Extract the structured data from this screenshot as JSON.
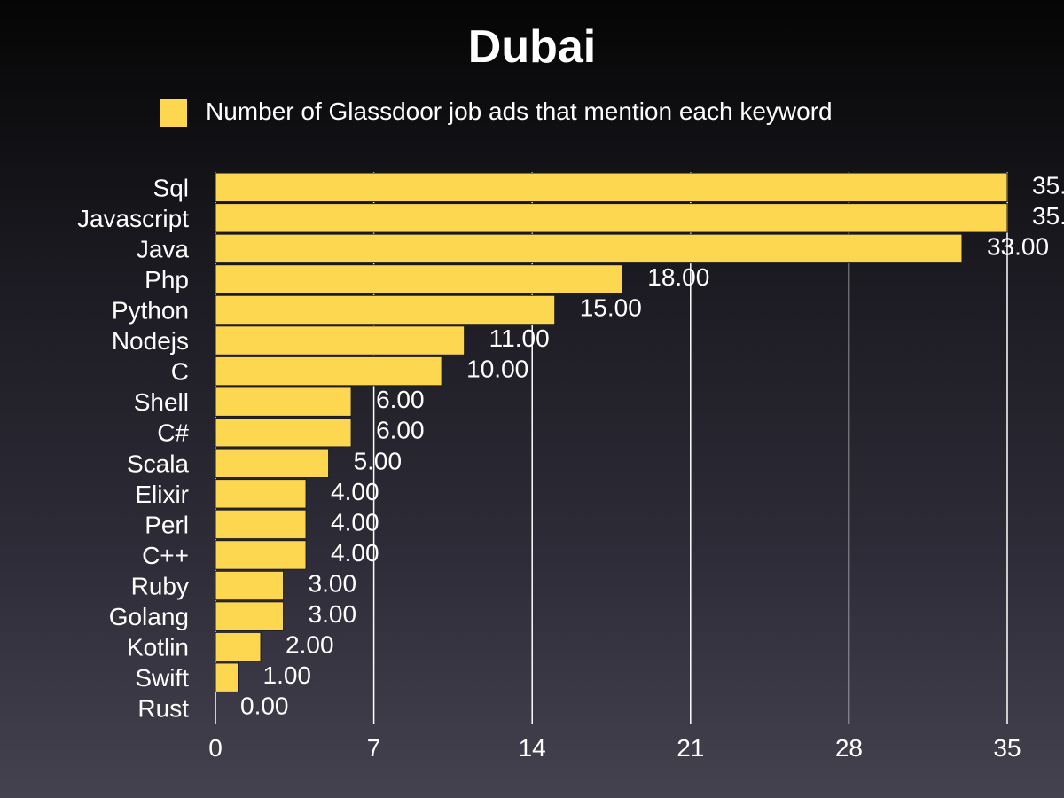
{
  "chart_data": {
    "type": "bar",
    "orientation": "horizontal",
    "title": "Dubai",
    "xlabel": "",
    "ylabel": "",
    "xlim": [
      0,
      35
    ],
    "xticks": [
      "0",
      "7",
      "14",
      "21",
      "28",
      "35"
    ],
    "grid": true,
    "legend_position": "top",
    "categories": [
      "Sql",
      "Javascript",
      "Java",
      "Php",
      "Python",
      "Nodejs",
      "C",
      "Shell",
      "C#",
      "Scala",
      "Elixir",
      "Perl",
      "C++",
      "Ruby",
      "Golang",
      "Kotlin",
      "Swift",
      "Rust"
    ],
    "series": [
      {
        "name": "Number of Glassdoor job ads that mention each keyword",
        "values": [
          35,
          35,
          33,
          18,
          15,
          11,
          10,
          6,
          6,
          5,
          4,
          4,
          4,
          3,
          3,
          2,
          1,
          0
        ],
        "value_labels": [
          "35.",
          "35.",
          "33.00",
          "18.00",
          "15.00",
          "11.00",
          "10.00",
          "6.00",
          "6.00",
          "5.00",
          "4.00",
          "4.00",
          "4.00",
          "3.00",
          "3.00",
          "2.00",
          "1.00",
          "0.00"
        ]
      }
    ],
    "colors": {
      "bar": "#fdd74f",
      "text": "#ffffff",
      "gridline": "#ffffff"
    }
  }
}
